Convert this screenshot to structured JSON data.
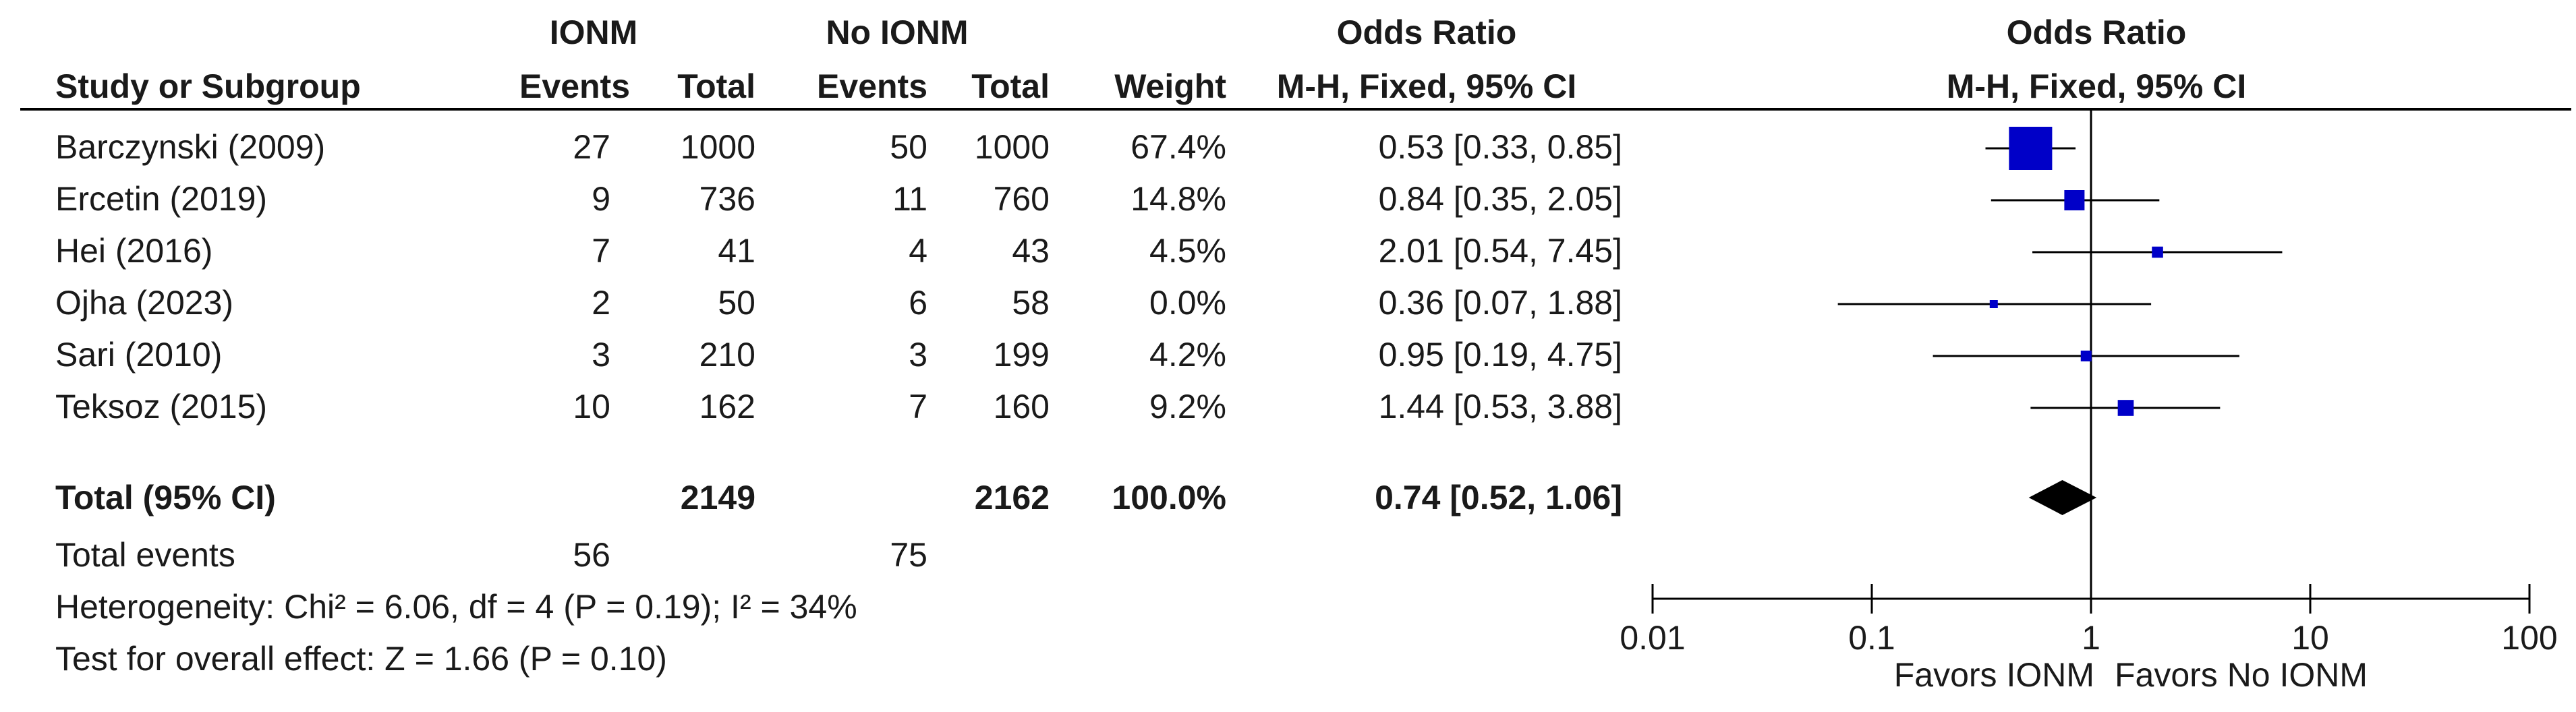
{
  "header": {
    "group1": "IONM",
    "group2": "No IONM",
    "table_effect_title": "Odds Ratio",
    "plot_effect_title": "Odds Ratio",
    "col_study": "Study or Subgroup",
    "col_events1": "Events",
    "col_total1": "Total",
    "col_events2": "Events",
    "col_total2": "Total",
    "col_weight": "Weight",
    "table_method": "M-H, Fixed, 95% CI",
    "plot_method": "M-H, Fixed, 95% CI"
  },
  "studies": [
    {
      "name": "Barczynski (2009)",
      "events1": "27",
      "total1": "1000",
      "events2": "50",
      "total2": "1000",
      "weight": "67.4%",
      "ci_text": "0.53 [0.33, 0.85]"
    },
    {
      "name": "Ercetin (2019)",
      "events1": "9",
      "total1": "736",
      "events2": "11",
      "total2": "760",
      "weight": "14.8%",
      "ci_text": "0.84 [0.35, 2.05]"
    },
    {
      "name": "Hei (2016)",
      "events1": "7",
      "total1": "41",
      "events2": "4",
      "total2": "43",
      "weight": "4.5%",
      "ci_text": "2.01 [0.54, 7.45]"
    },
    {
      "name": "Ojha (2023)",
      "events1": "2",
      "total1": "50",
      "events2": "6",
      "total2": "58",
      "weight": "0.0%",
      "ci_text": "0.36 [0.07, 1.88]"
    },
    {
      "name": "Sari (2010)",
      "events1": "3",
      "total1": "210",
      "events2": "3",
      "total2": "199",
      "weight": "4.2%",
      "ci_text": "0.95 [0.19, 4.75]"
    },
    {
      "name": "Teksoz (2015)",
      "events1": "10",
      "total1": "162",
      "events2": "7",
      "total2": "160",
      "weight": "9.2%",
      "ci_text": "1.44 [0.53, 3.88]"
    }
  ],
  "total": {
    "label": "Total (95% CI)",
    "total1": "2149",
    "total2": "2162",
    "weight": "100.0%",
    "ci_text": "0.74 [0.52, 1.06]"
  },
  "total_events": {
    "label": "Total events",
    "events1": "56",
    "events2": "75"
  },
  "heterogeneity": "Heterogeneity: Chi² = 6.06, df = 4 (P = 0.19); I² = 34%",
  "overall_effect": "Test for overall effect: Z = 1.66 (P = 0.10)",
  "axis": {
    "ticks": [
      0.01,
      0.1,
      1,
      10,
      100
    ],
    "tick_labels": [
      "0.01",
      "0.1",
      "1",
      "10",
      "100"
    ],
    "scale": "log",
    "left_label": "Favors IONM",
    "right_label": "Favors No IONM"
  },
  "colors": {
    "study_marker": "#0000c8",
    "pooled_diamond": "#000000",
    "text": "#1a1a1a"
  },
  "chart_data": {
    "type": "forest",
    "title": "Odds Ratio",
    "xlabel": "",
    "xscale": "log",
    "xlim": [
      0.01,
      100
    ],
    "reference_line": 1,
    "studies": [
      {
        "name": "Barczynski (2009)",
        "or": 0.53,
        "lower": 0.33,
        "upper": 0.85,
        "weight": 67.4
      },
      {
        "name": "Ercetin (2019)",
        "or": 0.84,
        "lower": 0.35,
        "upper": 2.05,
        "weight": 14.8
      },
      {
        "name": "Hei (2016)",
        "or": 2.01,
        "lower": 0.54,
        "upper": 7.45,
        "weight": 4.5
      },
      {
        "name": "Ojha (2023)",
        "or": 0.36,
        "lower": 0.07,
        "upper": 1.88,
        "weight": 0.0
      },
      {
        "name": "Sari (2010)",
        "or": 0.95,
        "lower": 0.19,
        "upper": 4.75,
        "weight": 4.2
      },
      {
        "name": "Teksoz (2015)",
        "or": 1.44,
        "lower": 0.53,
        "upper": 3.88,
        "weight": 9.2
      }
    ],
    "pooled": {
      "name": "Total (95% CI)",
      "or": 0.74,
      "lower": 0.52,
      "upper": 1.06
    }
  }
}
